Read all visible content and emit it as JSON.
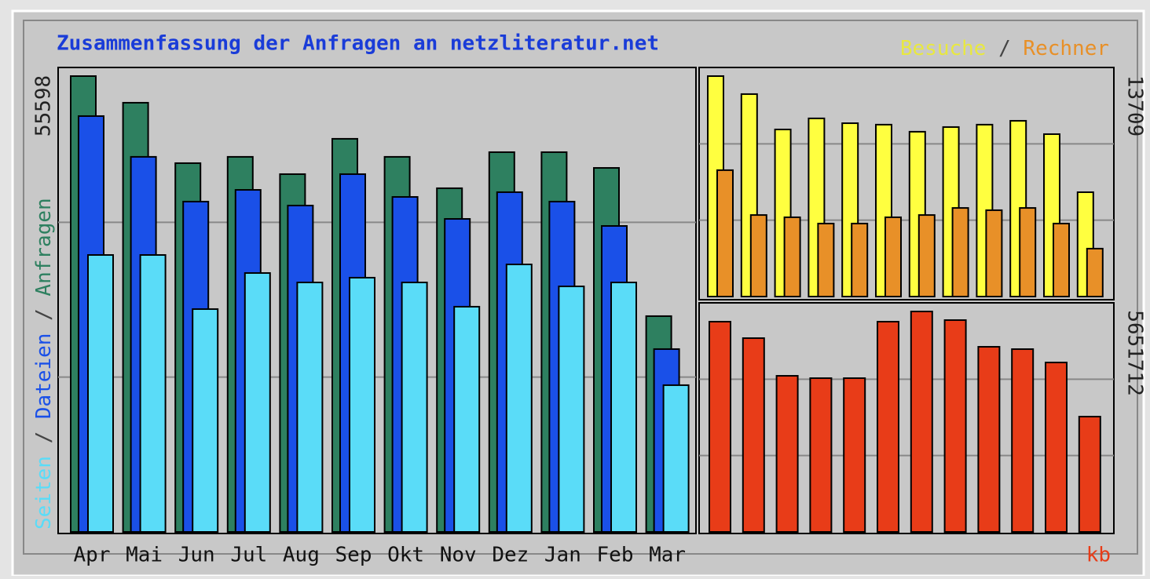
{
  "chart_data": [
    {
      "type": "bar",
      "title": "Zusammenfassung der Anfragen an netzliteratur.net",
      "categories": [
        "Apr",
        "Mai",
        "Jun",
        "Jul",
        "Aug",
        "Sep",
        "Okt",
        "Nov",
        "Dez",
        "Jan",
        "Feb",
        "Mar"
      ],
      "series": [
        {
          "name": "Anfragen",
          "color": "#2e8060",
          "values": [
            55598,
            52350,
            44980,
            45750,
            43640,
            47950,
            45750,
            41920,
            46320,
            46320,
            44400,
            26320
          ]
        },
        {
          "name": "Dateien",
          "color": "#1a50e8",
          "values": [
            50720,
            45750,
            40290,
            41720,
            39810,
            43640,
            40860,
            38180,
            41440,
            40290,
            37320,
            22300
          ]
        },
        {
          "name": "Seiten",
          "color": "#5adcf8",
          "values": [
            33780,
            33780,
            27180,
            31580,
            30430,
            31010,
            30430,
            27470,
            32630,
            29950,
            30430,
            17900
          ]
        }
      ],
      "separator": "/",
      "ylim": [
        0,
        55598
      ],
      "yticks": [
        55598
      ],
      "grid": true
    },
    {
      "type": "bar",
      "series": [
        {
          "name": "Besuche",
          "color": "#ffff40",
          "values": [
            13709,
            12590,
            10390,
            11080,
            10780,
            10690,
            10250,
            10540,
            10690,
            10930,
            10100,
            6490
          ]
        },
        {
          "name": "Rechner",
          "color": "#e89028",
          "values": [
            7860,
            5070,
            4930,
            4540,
            4540,
            4930,
            5070,
            5510,
            5370,
            5510,
            4540,
            2980
          ]
        }
      ],
      "separator": "/",
      "ylim": [
        0,
        13709
      ],
      "yticks": [
        13709
      ],
      "grid": true
    },
    {
      "type": "bar",
      "series": [
        {
          "name": "kb",
          "color": "#e83c18",
          "values": [
            5390000,
            4968000,
            4002000,
            3942000,
            3942000,
            5390000,
            5651712,
            5430000,
            4746000,
            4686000,
            4344000,
            2956000
          ]
        }
      ],
      "ylim": [
        0,
        5651712
      ],
      "yticks": [
        5651712
      ],
      "grid": true
    }
  ]
}
